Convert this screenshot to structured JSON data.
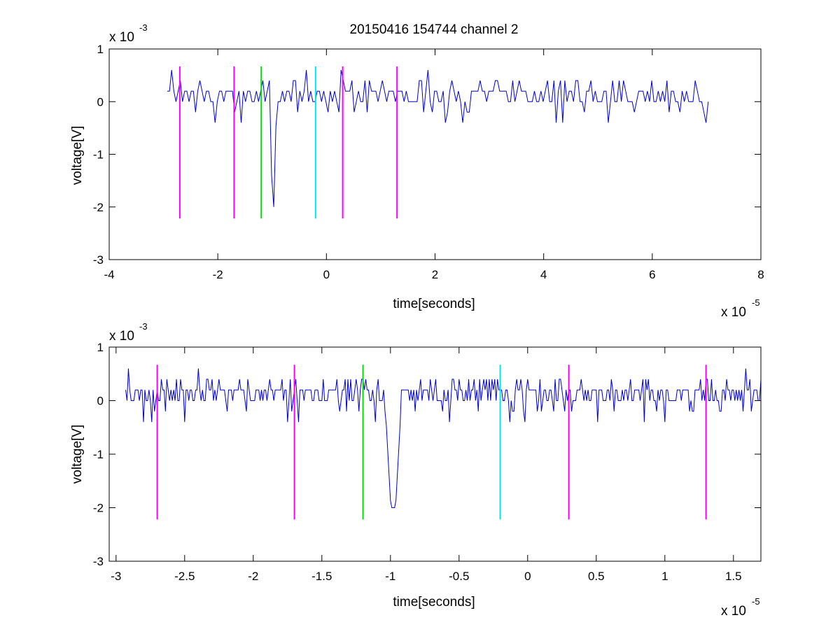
{
  "figure": {
    "title": "20150416 154744 channel 2"
  },
  "chart_data": [
    {
      "type": "line",
      "xlabel": "time[seconds]",
      "ylabel": "voltage[V]",
      "x_multiplier": "x 10",
      "x_exponent": "-5",
      "y_multiplier": "x 10",
      "y_exponent": "-3",
      "xlim": [
        -4,
        8
      ],
      "ylim": [
        -3,
        1
      ],
      "xticks": [
        -4,
        -2,
        0,
        2,
        4,
        6,
        8
      ],
      "yticks": [
        -3,
        -2,
        -1,
        0,
        1
      ],
      "xtick_labels": [
        "-4",
        "-2",
        "0",
        "2",
        "4",
        "6",
        "8"
      ],
      "ytick_labels": [
        "-3",
        "-2",
        "-1",
        "0",
        "1"
      ],
      "grid": false,
      "signal": {
        "color": "#0000cc",
        "x_start": -2.93,
        "x_end": 7.03,
        "step": 0.04,
        "baseline": [
          0.0,
          0.2
        ],
        "noise_range": [
          -0.4,
          0.6
        ],
        "dip": {
          "x_min": -0.98,
          "y_min": -2.0
        }
      },
      "markers": [
        {
          "x": -2.7,
          "y_top": 0.67,
          "y_bottom": -2.22,
          "color": "#ff00ff"
        },
        {
          "x": -1.7,
          "y_top": 0.67,
          "y_bottom": -2.22,
          "color": "#ff00ff"
        },
        {
          "x": -1.2,
          "y_top": 0.67,
          "y_bottom": -2.22,
          "color": "#00e000"
        },
        {
          "x": -0.2,
          "y_top": 0.67,
          "y_bottom": -2.22,
          "color": "#00e5e5"
        },
        {
          "x": 0.3,
          "y_top": 0.67,
          "y_bottom": -2.22,
          "color": "#ff00ff"
        },
        {
          "x": 1.3,
          "y_top": 0.67,
          "y_bottom": -2.22,
          "color": "#ff00ff"
        }
      ]
    },
    {
      "type": "line",
      "xlabel": "time[seconds]",
      "ylabel": "voltage[V]",
      "x_multiplier": "x 10",
      "x_exponent": "-5",
      "y_multiplier": "x 10",
      "y_exponent": "-3",
      "xlim": [
        -3.05,
        1.7
      ],
      "ylim": [
        -3,
        1
      ],
      "xticks": [
        -3,
        -2.5,
        -2,
        -1.5,
        -1,
        -0.5,
        0,
        0.5,
        1,
        1.5
      ],
      "yticks": [
        -3,
        -2,
        -1,
        0,
        1
      ],
      "xtick_labels": [
        "-3",
        "-2.5",
        "-2",
        "-1.5",
        "-1",
        "-0.5",
        "0",
        "0.5",
        "1",
        "1.5"
      ],
      "ytick_labels": [
        "-3",
        "-2",
        "-1",
        "0",
        "1"
      ],
      "grid": false,
      "signal": {
        "color": "#0000cc",
        "x_start": -2.93,
        "x_end": 1.7,
        "step": 0.01,
        "baseline": [
          0.0,
          0.2
        ],
        "noise_range": [
          -0.4,
          0.6
        ],
        "dip": {
          "x_min": -0.98,
          "y_min": -2.0
        }
      },
      "markers": [
        {
          "x": -2.7,
          "y_top": 0.67,
          "y_bottom": -2.22,
          "color": "#ff00ff"
        },
        {
          "x": -1.7,
          "y_top": 0.67,
          "y_bottom": -2.22,
          "color": "#ff00ff"
        },
        {
          "x": -1.2,
          "y_top": 0.67,
          "y_bottom": -2.22,
          "color": "#00e000"
        },
        {
          "x": -0.2,
          "y_top": 0.67,
          "y_bottom": -2.22,
          "color": "#00e5e5"
        },
        {
          "x": 0.3,
          "y_top": 0.67,
          "y_bottom": -2.22,
          "color": "#ff00ff"
        },
        {
          "x": 1.3,
          "y_top": 0.67,
          "y_bottom": -2.22,
          "color": "#ff00ff"
        }
      ]
    }
  ]
}
